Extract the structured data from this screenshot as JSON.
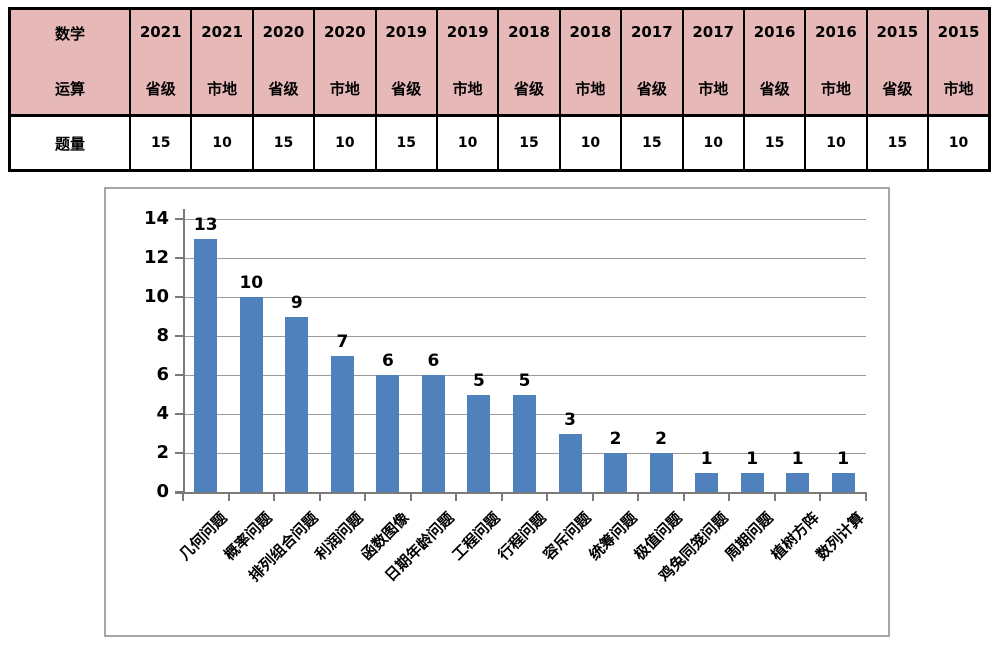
{
  "table": {
    "corner": {
      "line1": "数学",
      "line2": "运算"
    },
    "row_label": "题量",
    "columns": [
      {
        "year": "2021",
        "level": "省级",
        "value": "15"
      },
      {
        "year": "2021",
        "level": "市地",
        "value": "10"
      },
      {
        "year": "2020",
        "level": "省级",
        "value": "15"
      },
      {
        "year": "2020",
        "level": "市地",
        "value": "10"
      },
      {
        "year": "2019",
        "level": "省级",
        "value": "15"
      },
      {
        "year": "2019",
        "level": "市地",
        "value": "10"
      },
      {
        "year": "2018",
        "level": "省级",
        "value": "15"
      },
      {
        "year": "2018",
        "level": "市地",
        "value": "10"
      },
      {
        "year": "2017",
        "level": "省级",
        "value": "15"
      },
      {
        "year": "2017",
        "level": "市地",
        "value": "10"
      },
      {
        "year": "2016",
        "level": "省级",
        "value": "15"
      },
      {
        "year": "2016",
        "level": "市地",
        "value": "10"
      },
      {
        "year": "2015",
        "level": "省级",
        "value": "15"
      },
      {
        "year": "2015",
        "level": "市地",
        "value": "10"
      }
    ]
  },
  "chart_data": {
    "type": "bar",
    "categories": [
      "几何问题",
      "概率问题",
      "排列组合问题",
      "利润问题",
      "函数图像",
      "日期年龄问题",
      "工程问题",
      "行程问题",
      "容斥问题",
      "统筹问题",
      "极值问题",
      "鸡兔同笼问题",
      "周期问题",
      "植树方阵",
      "数列计算"
    ],
    "values": [
      13,
      10,
      9,
      7,
      6,
      6,
      5,
      5,
      3,
      2,
      2,
      1,
      1,
      1,
      1
    ],
    "data_labels": [
      "13",
      "10",
      "9",
      "7",
      "6",
      "6",
      "5",
      "5",
      "3",
      "2",
      "2",
      "1",
      "1",
      "1",
      "1"
    ],
    "yticks": [
      0,
      2,
      4,
      6,
      8,
      10,
      12,
      14
    ],
    "ylim": [
      0,
      14
    ],
    "grid": true,
    "legend_position": "none",
    "bar_color": "#4f81bd"
  },
  "colors": {
    "table_header_bg": "#e6b9b8",
    "table_border": "#000000",
    "bar": "#4f81bd",
    "gridline": "#9a9a9a",
    "axis": "#7a7a7a",
    "chart_frame_border": "#a6a6a6"
  }
}
